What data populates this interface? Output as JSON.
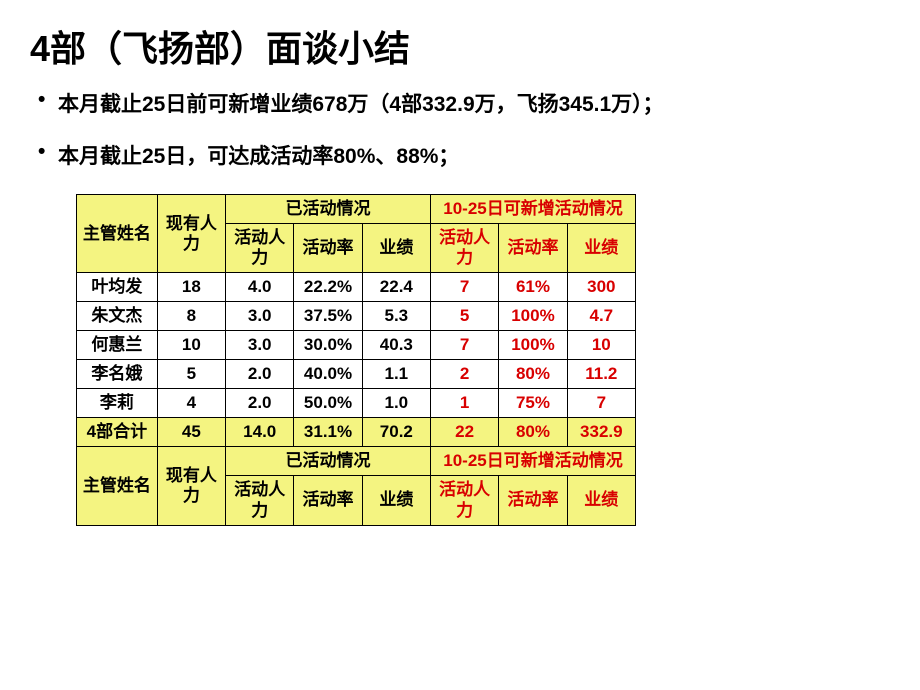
{
  "title": "4部（飞扬部）面谈小结",
  "bullets": [
    "本月截止25日前可新增业绩678万（4部332.9万，飞扬345.1万）；",
    "本月截止25日，可达成活动率80%、88%；"
  ],
  "tableHeaders": {
    "name": "主管姓名",
    "manpower": "现有人力",
    "doneGroup": "已活动情况",
    "planGroup": "10-25日可新增活动情况",
    "actPpl": "活动人力",
    "actRate": "活动率",
    "perf": "业绩"
  },
  "rows": [
    {
      "name": "叶均发",
      "manpower": "18",
      "actPpl": "4.0",
      "actRate": "22.2%",
      "perf": "22.4",
      "pPpl": "7",
      "pRate": "61%",
      "pPerf": "300"
    },
    {
      "name": "朱文杰",
      "manpower": "8",
      "actPpl": "3.0",
      "actRate": "37.5%",
      "perf": "5.3",
      "pPpl": "5",
      "pRate": "100%",
      "pPerf": "4.7"
    },
    {
      "name": "何惠兰",
      "manpower": "10",
      "actPpl": "3.0",
      "actRate": "30.0%",
      "perf": "40.3",
      "pPpl": "7",
      "pRate": "100%",
      "pPerf": "10"
    },
    {
      "name": "李名娥",
      "manpower": "5",
      "actPpl": "2.0",
      "actRate": "40.0%",
      "perf": "1.1",
      "pPpl": "2",
      "pRate": "80%",
      "pPerf": "11.2"
    },
    {
      "name": "李莉",
      "manpower": "4",
      "actPpl": "2.0",
      "actRate": "50.0%",
      "perf": "1.0",
      "pPpl": "1",
      "pRate": "75%",
      "pPerf": "7"
    }
  ],
  "subtotal": {
    "name": "4部合计",
    "manpower": "45",
    "actPpl": "14.0",
    "actRate": "31.1%",
    "perf": "70.2",
    "pPpl": "22",
    "pRate": "80%",
    "pPerf": "332.9"
  },
  "colors": {
    "headerBg": "#f4f481",
    "redText": "#d80000",
    "border": "#000000",
    "bodyBg": "#ffffff"
  }
}
